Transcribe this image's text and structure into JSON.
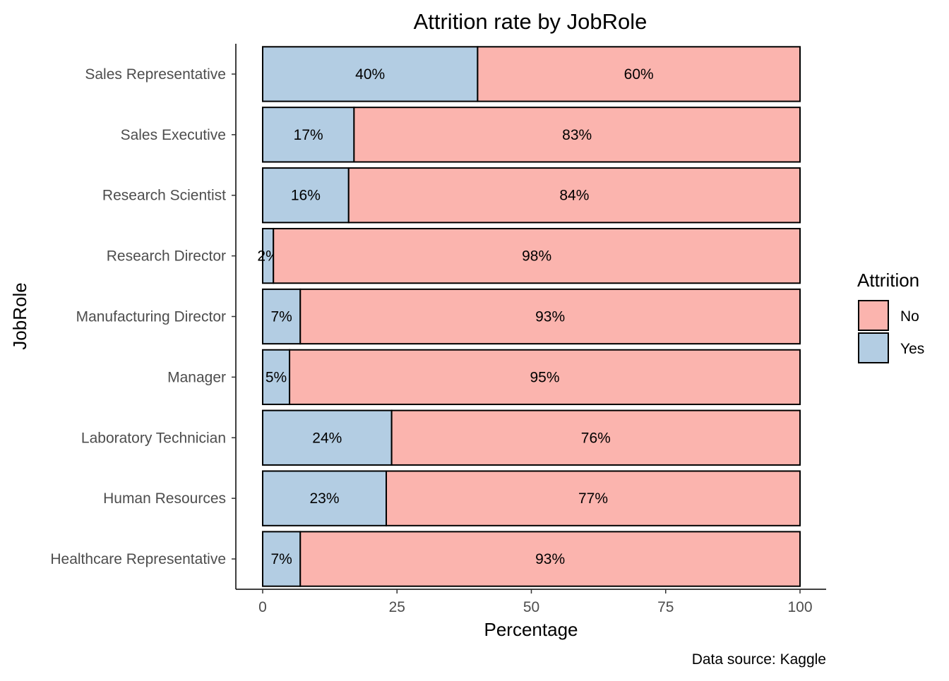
{
  "chart_data": {
    "type": "bar",
    "orientation": "horizontal",
    "stacked": true,
    "title": "Attrition rate by JobRole",
    "xlabel": "Percentage",
    "ylabel": "JobRole",
    "xlim": [
      0,
      100
    ],
    "xticks": [
      0,
      25,
      50,
      75,
      100
    ],
    "grid": false,
    "categories": [
      "Sales Representative",
      "Sales Executive",
      "Research Scientist",
      "Research Director",
      "Manufacturing Director",
      "Manager",
      "Laboratory Technician",
      "Human Resources",
      "Healthcare Representative"
    ],
    "series": [
      {
        "name": "Yes",
        "color": "#b3cde3",
        "values": [
          40,
          17,
          16,
          2,
          7,
          5,
          24,
          23,
          7
        ]
      },
      {
        "name": "No",
        "color": "#fbb4ae",
        "values": [
          60,
          83,
          84,
          98,
          93,
          95,
          76,
          77,
          93
        ]
      }
    ],
    "label_suffix": "%",
    "legend": {
      "title": "Attrition",
      "placement": "right",
      "entries": [
        {
          "label": "No",
          "color": "#fbb4ae"
        },
        {
          "label": "Yes",
          "color": "#b3cde3"
        }
      ]
    },
    "caption": "Data source: Kaggle"
  }
}
